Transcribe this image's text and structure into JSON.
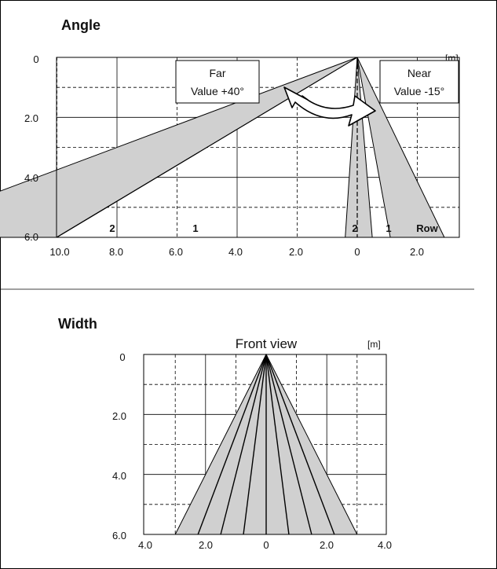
{
  "angle": {
    "title": "Angle",
    "unit": "[m]",
    "y_ticks": [
      "0",
      "2.0",
      "4.0",
      "6.0"
    ],
    "x_ticks": [
      "10.0",
      "8.0",
      "6.0",
      "4.0",
      "2.0",
      "0",
      "2.0"
    ],
    "row_label": "Row",
    "far_box": {
      "line1": "Far",
      "line2": "Value +40°"
    },
    "near_box": {
      "line1": "Near",
      "line2": "Value -15°"
    },
    "beam_labels_far": [
      "2",
      "1"
    ],
    "beam_labels_near": [
      "2",
      "1"
    ]
  },
  "width": {
    "title": "Width",
    "subtitle": "Front view",
    "unit": "[m]",
    "y_ticks": [
      "0",
      "2.0",
      "4.0",
      "6.0"
    ],
    "x_ticks": [
      "4.0",
      "2.0",
      "0",
      "2.0",
      "4.0"
    ]
  },
  "colors": {
    "beam_fill": "#d0d0d0",
    "line": "#000000",
    "background": "#ffffff"
  },
  "chart_data": [
    {
      "type": "other",
      "title": "Angle",
      "xlim": [
        10,
        -3
      ],
      "ylim": [
        0,
        6
      ],
      "beams": [
        {
          "label": "2",
          "side": "far",
          "x_end_range": [
            10.0,
            8.0
          ]
        },
        {
          "label": "1",
          "side": "far",
          "x_end_range": [
            6.6,
            5.0
          ]
        },
        {
          "label": "2",
          "side": "near",
          "x_end_range": [
            0.2,
            -0.25
          ]
        },
        {
          "label": "1",
          "side": "near",
          "x_end_range": [
            -0.55,
            -1.45
          ]
        }
      ]
    },
    {
      "type": "other",
      "title": "Width",
      "xlim": [
        -4,
        4
      ],
      "ylim": [
        0,
        6
      ],
      "spread_at_bottom": [
        -3,
        3
      ]
    }
  ]
}
